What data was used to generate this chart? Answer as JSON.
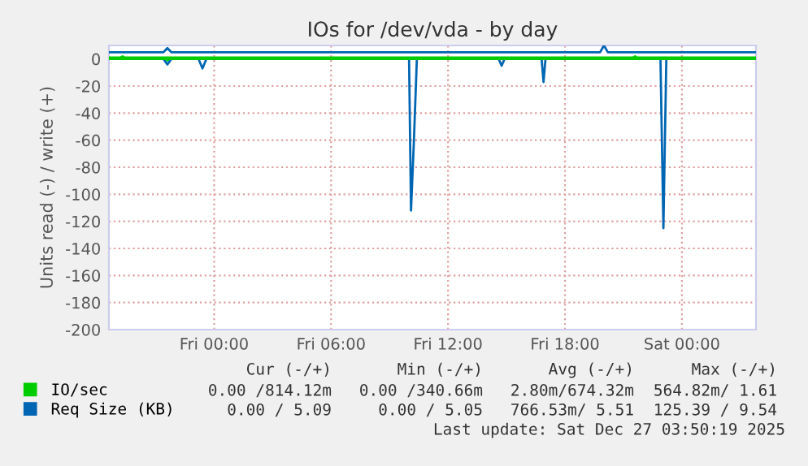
{
  "chart_data": {
    "type": "line",
    "title": "IOs for /dev/vda - by day",
    "ylabel": "Units read (-) / write (+)",
    "xlim": [
      "2025-12-25T18:36",
      "2025-12-27T03:48"
    ],
    "xticks": [
      {
        "value": "2025-12-26T00:00",
        "label": "Fri 00:00"
      },
      {
        "value": "2025-12-26T06:00",
        "label": "Fri 06:00"
      },
      {
        "value": "2025-12-26T12:00",
        "label": "Fri 12:00"
      },
      {
        "value": "2025-12-26T18:00",
        "label": "Fri 18:00"
      },
      {
        "value": "2025-12-27T00:00",
        "label": "Sat 00:00"
      }
    ],
    "ylim": [
      -200,
      10
    ],
    "yticks": [
      -200,
      -180,
      -160,
      -140,
      -120,
      -100,
      -80,
      -60,
      -40,
      -20,
      0
    ],
    "grid": true,
    "legend": "bottom left",
    "line_style": "solid",
    "marker": "none",
    "series": [
      {
        "name": "IO/sec",
        "color": "#00cc00",
        "x": [
          "2025-12-25T18:36",
          "2025-12-25T19:12",
          "2025-12-25T19:18",
          "2025-12-25T19:24",
          "2025-12-26T21:30",
          "2025-12-26T21:36",
          "2025-12-26T21:42",
          "2025-12-27T03:48"
        ],
        "values": [
          1,
          1,
          2,
          1,
          1,
          2,
          1,
          1
        ]
      },
      {
        "color": "#00cc00",
        "x": [
          "2025-12-25T18:36",
          "2025-12-25T21:30",
          "2025-12-25T21:36",
          "2025-12-25T21:42",
          "2025-12-27T03:48"
        ],
        "values": [
          0,
          0,
          -1,
          0,
          0
        ]
      },
      {
        "name": "Req Size (KB)",
        "color": "#0066b3",
        "x": [
          "2025-12-25T18:36",
          "2025-12-25T21:24",
          "2025-12-25T21:36",
          "2025-12-25T21:48",
          "2025-12-26T19:48",
          "2025-12-26T20:00",
          "2025-12-26T20:12",
          "2025-12-27T03:48"
        ],
        "values": [
          5,
          5,
          8,
          5,
          5,
          10,
          5,
          5
        ]
      },
      {
        "color": "#0066b3",
        "x": [
          "2025-12-25T18:36",
          "2025-12-25T21:24",
          "2025-12-25T21:36",
          "2025-12-25T21:48",
          "2025-12-25T23:12",
          "2025-12-25T23:24",
          "2025-12-25T23:36",
          "2025-12-26T10:00",
          "2025-12-26T10:06",
          "2025-12-26T10:15",
          "2025-12-26T10:24",
          "2025-12-26T14:36",
          "2025-12-26T14:45",
          "2025-12-26T14:54",
          "2025-12-26T16:48",
          "2025-12-26T16:54",
          "2025-12-26T17:00",
          "2025-12-26T22:54",
          "2025-12-26T23:03",
          "2025-12-26T23:12",
          "2025-12-27T03:48"
        ],
        "values": [
          0,
          0,
          -4,
          0,
          0,
          -7,
          0,
          0,
          -112,
          -60,
          0,
          0,
          -5,
          0,
          0,
          -17,
          0,
          0,
          -125,
          0,
          0
        ]
      }
    ],
    "annotations": [
      "Cur (-/+)",
      "Min (-/+)",
      "Avg (-/+)",
      "Max (-/+)",
      "0.00 /814.12m",
      "0.00 /340.66m",
      "2.80m/674.32m",
      "564.82m/ 1.61",
      "0.00 / 5.09",
      "0.00 / 5.05",
      "766.53m/ 5.51",
      "125.39 / 9.54",
      "Last update: Sat Dec 27 03:50:19 2025"
    ]
  }
}
